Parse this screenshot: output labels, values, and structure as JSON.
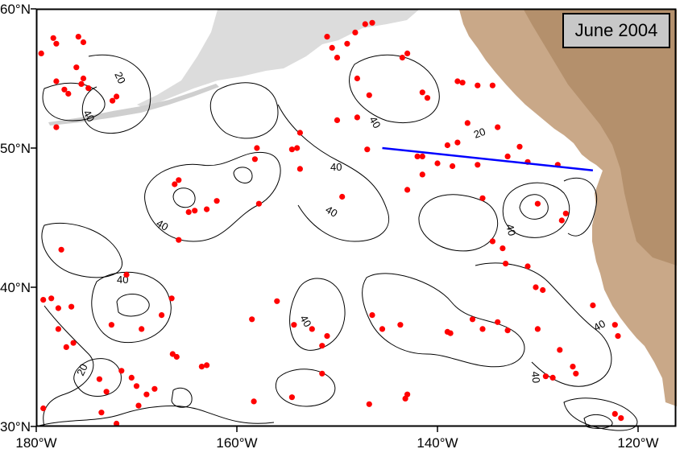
{
  "title": "June 2004",
  "axes": {
    "lat_labels": [
      "60°N",
      "50°N",
      "40°N",
      "30°N"
    ],
    "lon_labels": [
      "180°W",
      "160°W",
      "140°W",
      "120°W"
    ]
  },
  "contour_labels": [
    "20",
    "40",
    "40",
    "40",
    "40",
    "40",
    "20",
    "40",
    "40",
    "40",
    "40",
    "20",
    "40"
  ],
  "colors": {
    "contour": "#000000",
    "station": "#ff0000",
    "transect": "#0000ff",
    "land": "#c9a888",
    "title_box": "#c8c8c8"
  },
  "transect": {
    "start": {
      "lon": -145.5,
      "lat": 50.0
    },
    "end": {
      "lon": -124.5,
      "lat": 48.4
    }
  },
  "stations": [
    [
      -179.5,
      56.8
    ],
    [
      -178.3,
      57.9
    ],
    [
      -178.0,
      57.5
    ],
    [
      -175.8,
      58.0
    ],
    [
      -175.3,
      57.6
    ],
    [
      -176.0,
      55.8
    ],
    [
      -175.3,
      55.0
    ],
    [
      -174.8,
      54.3
    ],
    [
      -175.5,
      54.6
    ],
    [
      -177.2,
      54.2
    ],
    [
      -176.8,
      53.9
    ],
    [
      -178.0,
      54.8
    ],
    [
      -172.0,
      53.7
    ],
    [
      -172.4,
      53.4
    ],
    [
      -178.0,
      51.5
    ],
    [
      -149.0,
      57.5
    ],
    [
      -148.2,
      58.3
    ],
    [
      -146.5,
      59.0
    ],
    [
      -147.2,
      58.9
    ],
    [
      -150.0,
      56.5
    ],
    [
      -150.5,
      57.2
    ],
    [
      -151.0,
      58.0
    ],
    [
      -148.0,
      55.0
    ],
    [
      -146.8,
      53.8
    ],
    [
      -150.0,
      52.0
    ],
    [
      -148.0,
      52.2
    ],
    [
      -143.0,
      56.8
    ],
    [
      -143.5,
      56.5
    ],
    [
      -141.5,
      54.0
    ],
    [
      -141.0,
      53.6
    ],
    [
      -138.0,
      54.8
    ],
    [
      -136.0,
      54.5
    ],
    [
      -134.5,
      54.5
    ],
    [
      -137.5,
      54.7
    ],
    [
      -137.0,
      51.8
    ],
    [
      -134.0,
      51.5
    ],
    [
      -138.0,
      50.4
    ],
    [
      -139.0,
      50.2
    ],
    [
      -142.0,
      49.4
    ],
    [
      -141.5,
      49.4
    ],
    [
      -140.0,
      48.9
    ],
    [
      -141.5,
      48.1
    ],
    [
      -138.5,
      48.7
    ],
    [
      -136.0,
      48.8
    ],
    [
      -133.0,
      49.4
    ],
    [
      -131.8,
      50.1
    ],
    [
      -131.0,
      49.0
    ],
    [
      -143.0,
      47.0
    ],
    [
      -147.0,
      49.9
    ],
    [
      -153.7,
      51.1
    ],
    [
      -154.0,
      50.0
    ],
    [
      -154.5,
      49.9
    ],
    [
      -158.0,
      50.0
    ],
    [
      -158.2,
      49.2
    ],
    [
      -153.7,
      48.5
    ],
    [
      -149.5,
      46.5
    ],
    [
      -165.8,
      47.7
    ],
    [
      -166.2,
      47.4
    ],
    [
      -162.0,
      46.2
    ],
    [
      -163.0,
      45.6
    ],
    [
      -164.2,
      45.5
    ],
    [
      -157.8,
      46.0
    ],
    [
      -164.8,
      45.4
    ],
    [
      -165.8,
      43.4
    ],
    [
      -130.0,
      46.0
    ],
    [
      -128.0,
      48.8
    ],
    [
      -127.2,
      45.3
    ],
    [
      -127.6,
      44.8
    ],
    [
      -135.5,
      46.4
    ],
    [
      -134.5,
      43.3
    ],
    [
      -133.5,
      42.8
    ],
    [
      -133.2,
      41.7
    ],
    [
      -131.0,
      41.5
    ],
    [
      -177.5,
      42.7
    ],
    [
      -178.5,
      39.2
    ],
    [
      -179.3,
      39.1
    ],
    [
      -177.8,
      38.5
    ],
    [
      -177.8,
      37.0
    ],
    [
      -176.5,
      38.6
    ],
    [
      -176.3,
      36.0
    ],
    [
      -177.0,
      35.7
    ],
    [
      -171.0,
      40.9
    ],
    [
      -172.5,
      37.3
    ],
    [
      -169.5,
      37.0
    ],
    [
      -166.5,
      39.2
    ],
    [
      -167.5,
      38.0
    ],
    [
      -166.0,
      35.0
    ],
    [
      -166.4,
      35.2
    ],
    [
      -163.5,
      34.3
    ],
    [
      -163.0,
      34.4
    ],
    [
      -158.5,
      37.7
    ],
    [
      -156.0,
      39.0
    ],
    [
      -154.3,
      37.3
    ],
    [
      -152.5,
      37.0
    ],
    [
      -151.0,
      36.5
    ],
    [
      -151.5,
      35.8
    ],
    [
      -146.5,
      38.0
    ],
    [
      -145.5,
      37.0
    ],
    [
      -143.7,
      37.3
    ],
    [
      -139.0,
      36.8
    ],
    [
      -138.7,
      36.7
    ],
    [
      -136.5,
      37.7
    ],
    [
      -135.5,
      37.0
    ],
    [
      -134.0,
      37.5
    ],
    [
      -133.0,
      36.9
    ],
    [
      -130.0,
      37.0
    ],
    [
      -130.2,
      40.0
    ],
    [
      -129.5,
      39.8
    ],
    [
      -127.8,
      35.5
    ],
    [
      -124.5,
      38.7
    ],
    [
      -122.3,
      37.3
    ],
    [
      -122.0,
      36.5
    ],
    [
      -126.5,
      34.3
    ],
    [
      -126.2,
      33.8
    ],
    [
      -129.2,
      33.6
    ],
    [
      -128.5,
      33.5
    ],
    [
      -171.5,
      34.0
    ],
    [
      -170.5,
      33.5
    ],
    [
      -170.0,
      32.9
    ],
    [
      -169.0,
      32.3
    ],
    [
      -168.2,
      32.7
    ],
    [
      -169.8,
      31.5
    ],
    [
      -173.7,
      33.4
    ],
    [
      -173.0,
      32.5
    ],
    [
      -173.5,
      31.0
    ],
    [
      -179.3,
      31.3
    ],
    [
      -172.0,
      30.2
    ],
    [
      -158.3,
      31.8
    ],
    [
      -154.5,
      32.1
    ],
    [
      -146.8,
      31.6
    ],
    [
      -143.0,
      32.3
    ],
    [
      -143.2,
      32.0
    ],
    [
      -122.3,
      30.9
    ],
    [
      -121.7,
      30.6
    ],
    [
      -151.5,
      33.8
    ]
  ]
}
